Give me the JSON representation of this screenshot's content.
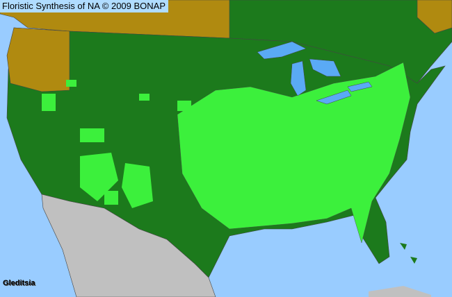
{
  "title": "Floristic Synthesis of NA © 2009 BONAP",
  "taxon": "Gleditsia",
  "colors": {
    "ocean": "#99ccff",
    "lakes": "#5aaaf5",
    "present_county": "#3cf03c",
    "present_state": "#1c7a1c",
    "not_present_region": "#b08a10",
    "outside_area": "#c0c0c0",
    "borders": "#4a4a4a"
  }
}
